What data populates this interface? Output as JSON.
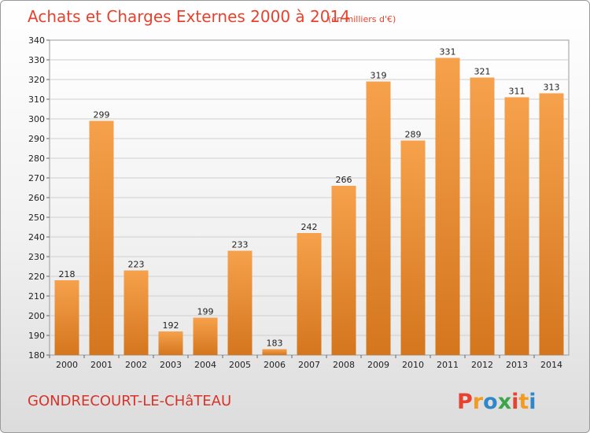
{
  "title": "Achats et Charges Externes 2000 à 2014",
  "unit": "(en milliers d'€)",
  "commune": "GONDRECOURT-LE-CHâTEAU",
  "logo": "Proxiti",
  "colors": {
    "title": "#e8422e",
    "bar_top": "#f6a14c",
    "bar_bottom": "#d4761e",
    "grid": "#cfcfcf"
  },
  "chart_data": {
    "type": "bar",
    "title": "Achats et Charges Externes 2000 à 2014",
    "xlabel": "",
    "ylabel": "",
    "categories": [
      "2000",
      "2001",
      "2002",
      "2003",
      "2004",
      "2005",
      "2006",
      "2007",
      "2008",
      "2009",
      "2010",
      "2011",
      "2012",
      "2013",
      "2014"
    ],
    "values": [
      218,
      299,
      223,
      192,
      199,
      233,
      183,
      242,
      266,
      319,
      289,
      331,
      321,
      311,
      313
    ],
    "ylim": [
      180,
      340
    ],
    "yticks": [
      180,
      190,
      200,
      210,
      220,
      230,
      240,
      250,
      260,
      270,
      280,
      290,
      300,
      310,
      320,
      330,
      340
    ],
    "grid": true,
    "data_labels": true
  }
}
